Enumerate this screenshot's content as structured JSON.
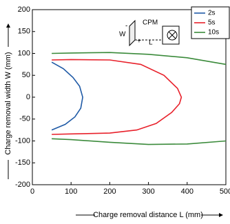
{
  "chart_data": {
    "type": "line",
    "xlabel": "Charge removal distance L (mm)",
    "ylabel": "Charge removal width W (mm)",
    "xlim": [
      0,
      500
    ],
    "ylim": [
      -200,
      200
    ],
    "xticks": [
      0,
      100,
      200,
      300,
      400,
      500
    ],
    "yticks": [
      200,
      150,
      100,
      50,
      0,
      -50,
      -100,
      -150,
      -200
    ],
    "grid": false,
    "legend": "upper right",
    "annotations": [
      "CPM",
      "W",
      "L",
      "+",
      "-"
    ],
    "series": [
      {
        "name": "2s",
        "color": "#1f5aa6",
        "x": [
          50,
          80,
          105,
          122,
          130,
          125,
          110,
          85,
          50
        ],
        "values": [
          80,
          65,
          45,
          25,
          0,
          -25,
          -45,
          -62,
          -75
        ]
      },
      {
        "name": "5s",
        "color": "#e8202a",
        "x": [
          50,
          100,
          200,
          280,
          340,
          375,
          385,
          380,
          360,
          320,
          270,
          200,
          100,
          50
        ],
        "values": [
          85,
          86,
          85,
          75,
          50,
          20,
          0,
          -15,
          -35,
          -60,
          -75,
          -82,
          -84,
          -85
        ]
      },
      {
        "name": "10s",
        "color": "#3a8a3a",
        "x": [
          50,
          100,
          200,
          300,
          400,
          500,
          null,
          50,
          100,
          200,
          300,
          400,
          500
        ],
        "values": [
          100,
          101,
          102,
          98,
          90,
          75,
          null,
          -95,
          -97,
          -103,
          -108,
          -107,
          -100
        ]
      }
    ]
  }
}
